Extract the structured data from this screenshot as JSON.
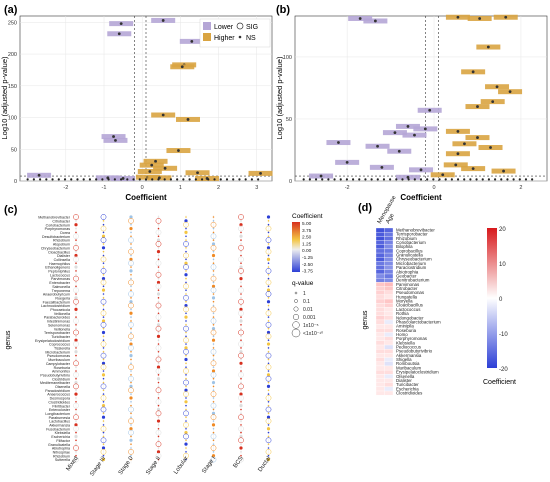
{
  "colors": {
    "lower": "#b5a6d6",
    "higher": "#d9a441",
    "heat_pos": "#d7191c",
    "heat_neg": "#2c3fd6"
  },
  "chart_data": [
    {
      "panel": "(a)",
      "type": "scatter",
      "xlabel": "Coefficient",
      "ylabel": "Log10 (adjusted p-value)",
      "xticks": [
        "-2",
        "-1",
        "0",
        "1",
        "2",
        "3"
      ],
      "yticks": [
        "0",
        "50",
        "100",
        "150",
        "200",
        "250"
      ],
      "xlim": [
        -3.2,
        3.4
      ],
      "ylim": [
        0,
        260
      ],
      "legend": {
        "direction": [
          "Lower",
          "Higher"
        ],
        "sig": [
          "SIG",
          "NS"
        ]
      },
      "points": [
        {
          "x": -0.55,
          "y": 248,
          "d": "lower"
        },
        {
          "x": -0.6,
          "y": 232,
          "d": "lower"
        },
        {
          "x": 0.55,
          "y": 253,
          "d": "lower"
        },
        {
          "x": 1.3,
          "y": 220,
          "d": "lower"
        },
        {
          "x": 1.1,
          "y": 183,
          "d": "higher"
        },
        {
          "x": 1.05,
          "y": 180,
          "d": "higher"
        },
        {
          "x": 0.55,
          "y": 104,
          "d": "higher"
        },
        {
          "x": 1.2,
          "y": 97,
          "d": "higher"
        },
        {
          "x": -0.75,
          "y": 70,
          "d": "lower"
        },
        {
          "x": -0.7,
          "y": 64,
          "d": "lower"
        },
        {
          "x": 0.95,
          "y": 48,
          "d": "higher"
        },
        {
          "x": 0.35,
          "y": 31,
          "d": "higher"
        },
        {
          "x": 0.25,
          "y": 25,
          "d": "higher"
        },
        {
          "x": 0.6,
          "y": 20,
          "d": "higher"
        },
        {
          "x": 0.2,
          "y": 15,
          "d": "higher"
        },
        {
          "x": 1.45,
          "y": 13,
          "d": "higher"
        },
        {
          "x": 3.1,
          "y": 12,
          "d": "higher"
        },
        {
          "x": -2.7,
          "y": 9,
          "d": "lower"
        },
        {
          "x": -0.9,
          "y": 5,
          "d": "lower"
        },
        {
          "x": -0.5,
          "y": 4,
          "d": "lower"
        },
        {
          "x": 0.15,
          "y": 6,
          "d": "higher"
        },
        {
          "x": 0.45,
          "y": 5,
          "d": "higher"
        },
        {
          "x": 1.7,
          "y": 4,
          "d": "higher"
        }
      ]
    },
    {
      "panel": "(b)",
      "type": "scatter",
      "xlabel": "Coefficient",
      "ylabel": "Log10 (adjusted p-value)",
      "xticks": [
        "-2",
        "0",
        "2"
      ],
      "yticks": [
        "0",
        "50",
        "100"
      ],
      "xlim": [
        -3.2,
        2.6
      ],
      "ylim": [
        0,
        133
      ],
      "points": [
        {
          "x": -1.7,
          "y": 131,
          "d": "lower"
        },
        {
          "x": -1.35,
          "y": 129,
          "d": "lower"
        },
        {
          "x": 0.55,
          "y": 132,
          "d": "higher"
        },
        {
          "x": 1.05,
          "y": 131,
          "d": "higher"
        },
        {
          "x": 1.65,
          "y": 132,
          "d": "higher"
        },
        {
          "x": 1.25,
          "y": 108,
          "d": "higher"
        },
        {
          "x": 0.9,
          "y": 88,
          "d": "higher"
        },
        {
          "x": 1.45,
          "y": 76,
          "d": "higher"
        },
        {
          "x": 1.75,
          "y": 72,
          "d": "higher"
        },
        {
          "x": 1.35,
          "y": 64,
          "d": "higher"
        },
        {
          "x": 1.0,
          "y": 60,
          "d": "higher"
        },
        {
          "x": -0.1,
          "y": 57,
          "d": "lower"
        },
        {
          "x": -0.6,
          "y": 44,
          "d": "lower"
        },
        {
          "x": -0.2,
          "y": 42,
          "d": "lower"
        },
        {
          "x": -0.9,
          "y": 39,
          "d": "lower"
        },
        {
          "x": -0.45,
          "y": 37,
          "d": "lower"
        },
        {
          "x": 0.55,
          "y": 40,
          "d": "higher"
        },
        {
          "x": 1.0,
          "y": 35,
          "d": "higher"
        },
        {
          "x": 0.7,
          "y": 30,
          "d": "higher"
        },
        {
          "x": 1.3,
          "y": 27,
          "d": "higher"
        },
        {
          "x": -2.2,
          "y": 31,
          "d": "lower"
        },
        {
          "x": -1.3,
          "y": 28,
          "d": "lower"
        },
        {
          "x": -0.8,
          "y": 24,
          "d": "lower"
        },
        {
          "x": 0.55,
          "y": 22,
          "d": "higher"
        },
        {
          "x": -2.0,
          "y": 15,
          "d": "lower"
        },
        {
          "x": -1.2,
          "y": 11,
          "d": "lower"
        },
        {
          "x": 0.5,
          "y": 13,
          "d": "higher"
        },
        {
          "x": 0.9,
          "y": 10,
          "d": "higher"
        },
        {
          "x": 1.6,
          "y": 8,
          "d": "higher"
        },
        {
          "x": -0.3,
          "y": 9,
          "d": "lower"
        },
        {
          "x": 0.2,
          "y": 5,
          "d": "higher"
        },
        {
          "x": -0.6,
          "y": 3,
          "d": "lower"
        },
        {
          "x": -2.6,
          "y": 4,
          "d": "lower"
        }
      ]
    },
    {
      "panel": "(c)",
      "type": "scatter",
      "ylabel": "genus",
      "columns": [
        "Mixed",
        "Stage III",
        "Stage 0",
        "Stage II",
        "Lobular",
        "Stage I",
        "BCS",
        "Ductal"
      ],
      "genera": [
        "Methanobrevibacter",
        "Citrobacter",
        "Coriobacterium",
        "Porphyromonas",
        "Dorea",
        "Desulfobacterium",
        "Rhizobium",
        "Atopobium",
        "Chryseobacterium",
        "Cloacibacillus",
        "Dialister",
        "Collinsella",
        "Haemophilus",
        "Ethanoligenens",
        "Peptoniphilus",
        "Lactococcus",
        "Parvimonas",
        "Enterobacter",
        "Salmonella",
        "Treponema",
        "Anaerobutyricum",
        "Ruegeria",
        "Faecalibacterium",
        "Lachnoclostridium",
        "Phocaeicola",
        "Veillonella",
        "Parabacteroides",
        "Intestinimonas",
        "Selenomonas",
        "Veillonella",
        "Terrisporobacter",
        "Turicibacter",
        "Erysipelatoclostridium",
        "Coprococcus",
        "Tissierella",
        "Microbacterium",
        "Pseudomonas",
        "Murribaculum",
        "Campylobacter",
        "Roseburia",
        "Ammonifex",
        "Pseudobutyrivibrio",
        "Clostridium",
        "Mediterraneibacter",
        "Olsenella",
        "Paraclostridium",
        "Anaerococcus",
        "Desmospora",
        "Clostridioides",
        "Flintibacter",
        "Enterocloster",
        "Longibacterium",
        "Paraburnesia",
        "Lactobacillus",
        "Akkermansia",
        "Fusobacterium",
        "Klebsiella",
        "Escherichia",
        "Filifactor",
        "Granulicatella",
        "Abiotrophia",
        "Nitrospirae",
        "Rhizobium",
        "Sutterella"
      ],
      "colorbar": {
        "label": "Coefficient",
        "ticks": [
          "5.00",
          "3.75",
          "2.50",
          "1.25",
          "0.00",
          "-1.25",
          "-2.50",
          "-3.75"
        ]
      },
      "size_legend": {
        "label": "q-value",
        "entries": [
          "1",
          "0.1",
          "0.01",
          "0.001",
          "1x10⁻⁵",
          "<1x10⁻¹⁰"
        ]
      }
    },
    {
      "panel": "(d)",
      "type": "heatmap",
      "ylabel": "genus",
      "columns": [
        "Menopause",
        "Age"
      ],
      "colorbar": {
        "label": "Coefficient",
        "ticks": [
          "20",
          "10",
          "0",
          "-10",
          "-20"
        ]
      },
      "genera": [
        "Methanobrevibacter",
        "Terrisporobacter",
        "Rhizobium",
        "Coriobacterium",
        "Bilophila",
        "Coprobacillus",
        "Granulicatella",
        "Chryseobacterium",
        "Microbacterium",
        "Paraclostridium",
        "Abiotrophia",
        "Geobacter",
        "Denitrobacterium",
        "Parvimonas",
        "Citrobacter",
        "Pseudomonas",
        "Hungatella",
        "Moryella",
        "Cloacibacillus",
        "Lactococcus",
        "Rothia",
        "Ndongobacter",
        "Phascolarctobacterium",
        "Aminipila",
        "Roseburia",
        "Homo",
        "Porphyromonas",
        "Klebsiella",
        "Pediococcus",
        "Pseudobutyrivibrio",
        "Akkermansia",
        "Shigella",
        "Romboutsia",
        "Muribaculum",
        "Erysipelatoclostridium",
        "Olsenella",
        "Dialister",
        "Turicibacter",
        "Escherichia",
        "Clostridioides"
      ],
      "menopause": [
        -18,
        -17,
        -18,
        -16,
        -17,
        -15,
        -16,
        -17,
        -14,
        -15,
        -16,
        -12,
        -13,
        5,
        4,
        4,
        3,
        4,
        3,
        3,
        3,
        4,
        3,
        2,
        3,
        2,
        2,
        3,
        2,
        3,
        2,
        3,
        2,
        2,
        3,
        2,
        2,
        2,
        2,
        2
      ],
      "age": [
        -16,
        -14,
        -15,
        -13,
        -12,
        -14,
        -13,
        -12,
        -12,
        -11,
        -13,
        -14,
        -12,
        6,
        5,
        3,
        2,
        5,
        4,
        2,
        2,
        3,
        -2,
        2,
        3,
        -2,
        3,
        2,
        -3,
        3,
        2,
        -2,
        -3,
        2,
        3,
        -2,
        2,
        3,
        -2,
        2
      ]
    }
  ]
}
